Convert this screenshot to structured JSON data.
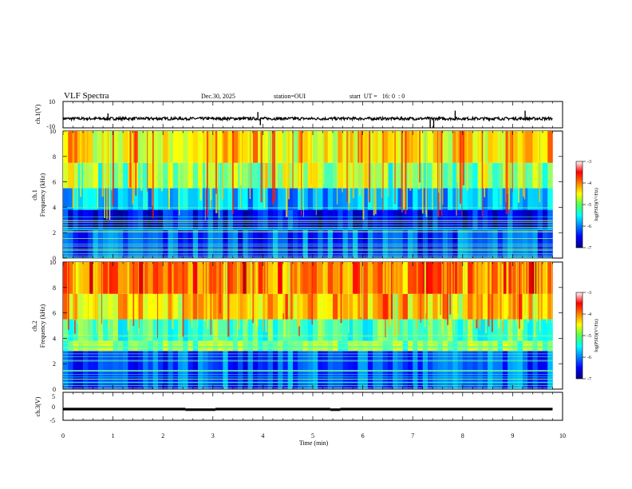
{
  "header": {
    "title": "VLF Spectra",
    "date": "Dec.30, 2025",
    "station": "station=OUI",
    "start": "start  UT =   16: 0  : 0"
  },
  "chart_data": [
    {
      "type": "line",
      "panel": "ch1-waveform",
      "ylabel": "ch.1(V)",
      "ylim": [
        -10,
        10
      ],
      "yticks": [
        "10",
        "-10"
      ],
      "xlim": [
        0,
        10
      ],
      "baseline": -3,
      "spikes": [
        {
          "x": 0.9,
          "y": 1
        },
        {
          "x": 3.9,
          "y": 2
        },
        {
          "x": 3.95,
          "y": -8
        },
        {
          "x": 7.35,
          "y": -10
        },
        {
          "x": 7.42,
          "y": -10
        },
        {
          "x": 7.85,
          "y": 3
        },
        {
          "x": 9.25,
          "y": 3
        }
      ]
    },
    {
      "type": "heatmap",
      "panel": "ch1-spectrogram",
      "ylabel_top": "ch.1",
      "ylabel": "Frequency (kHz)",
      "ylim": [
        0,
        10
      ],
      "xlim": [
        0,
        9.8
      ],
      "yticks": [
        "0",
        "2",
        "4",
        "6",
        "8",
        "10"
      ],
      "colorbar": {
        "label": "log(PSD)(V²/Hz)",
        "min": -7,
        "max": -3,
        "ticks": [
          "-3",
          "-4",
          "-5",
          "-6",
          "-7"
        ]
      },
      "bands": [
        {
          "f": [
            0,
            2.2
          ],
          "level": -6.2
        },
        {
          "f": [
            2.2,
            3.8
          ],
          "level": -6.5
        },
        {
          "f": [
            3.8,
            5.5
          ],
          "level": -5.8
        },
        {
          "f": [
            5.5,
            7.5
          ],
          "level": -5.2
        },
        {
          "f": [
            7.5,
            10
          ],
          "level": -4.8
        }
      ]
    },
    {
      "type": "heatmap",
      "panel": "ch2-spectrogram",
      "ylabel_top": "ch.2",
      "ylabel": "Frequency (kHz)",
      "ylim": [
        0,
        10
      ],
      "xlim": [
        0,
        9.8
      ],
      "yticks": [
        "0",
        "2",
        "4",
        "6",
        "8",
        "10"
      ],
      "colorbar": {
        "label": "log(PSD)(V²/Hz)",
        "min": -7,
        "max": -3,
        "ticks": [
          "-3",
          "-4",
          "-5",
          "-6",
          "-7"
        ]
      },
      "bands": [
        {
          "f": [
            0,
            3.0
          ],
          "level": -6.2
        },
        {
          "f": [
            3.0,
            3.8
          ],
          "level": -5.0
        },
        {
          "f": [
            3.8,
            5.5
          ],
          "level": -5.2
        },
        {
          "f": [
            5.5,
            7.5
          ],
          "level": -4.6
        },
        {
          "f": [
            7.5,
            10
          ],
          "level": -4.2
        }
      ]
    },
    {
      "type": "line",
      "panel": "ch3-waveform",
      "ylabel": "ch.3(V)",
      "ylim": [
        -5,
        5
      ],
      "yticks": [
        "5",
        "0",
        "-5"
      ],
      "xlim": [
        0,
        10
      ],
      "xlabel": "Time (min)",
      "xticks": [
        "0",
        "1",
        "2",
        "3",
        "4",
        "5",
        "6",
        "7",
        "8",
        "9",
        "10"
      ],
      "segments": [
        {
          "x": [
            0,
            2.45
          ],
          "y": -1
        },
        {
          "x": 2.45,
          "y": -1.2
        },
        {
          "x": [
            2.45,
            3.05
          ],
          "y": -1.2
        },
        {
          "x": [
            3.05,
            5.35
          ],
          "y": -1
        },
        {
          "x": [
            5.35,
            5.55
          ],
          "y": -1.2
        },
        {
          "x": [
            5.55,
            9.8
          ],
          "y": -1
        }
      ]
    }
  ]
}
